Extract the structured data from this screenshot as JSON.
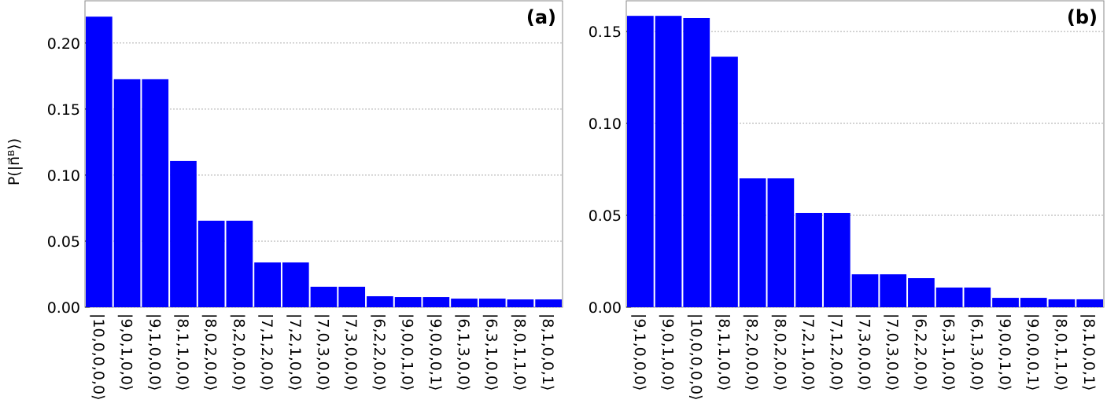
{
  "chart_data": [
    {
      "type": "bar",
      "title": "(a)",
      "ylabel": "P(|n⃗ᴮ⟩)",
      "color": "#0000ff",
      "grid": true,
      "categories": [
        "|10,0,0,0,0⟩",
        "|9,0,1,0,0⟩",
        "|9,1,0,0,0⟩",
        "|8,1,1,0,0⟩",
        "|8,0,2,0,0⟩",
        "|8,2,0,0,0⟩",
        "|7,1,2,0,0⟩",
        "|7,2,1,0,0⟩",
        "|7,0,3,0,0⟩",
        "|7,3,0,0,0⟩",
        "|6,2,2,0,0⟩",
        "|9,0,0,1,0⟩",
        "|9,0,0,0,1⟩",
        "|6,1,3,0,0⟩",
        "|6,3,1,0,0⟩",
        "|8,0,1,1,0⟩",
        "|8,1,0,0,1⟩"
      ],
      "values": [
        0.22,
        0.1726,
        0.1726,
        0.1107,
        0.0655,
        0.0655,
        0.0339,
        0.0339,
        0.0155,
        0.0155,
        0.0083,
        0.0077,
        0.0077,
        0.0065,
        0.0065,
        0.0059,
        0.0059
      ],
      "ylim": [
        0,
        0.232
      ],
      "yticks": [
        {
          "value": 0,
          "label": "0.00"
        },
        {
          "value": 0.05,
          "label": "0.05"
        },
        {
          "value": 0.1,
          "label": "0.10"
        },
        {
          "value": 0.15,
          "label": "0.15"
        },
        {
          "value": 0.2,
          "label": "0.20"
        }
      ]
    },
    {
      "type": "bar",
      "title": "(b)",
      "color": "#0000ff",
      "grid": true,
      "categories": [
        "|9,1,0,0,0⟩",
        "|9,0,1,0,0⟩",
        "|10,0,0,0,0⟩",
        "|8,1,1,0,0⟩",
        "|8,2,0,0,0⟩",
        "|8,0,2,0,0⟩",
        "|7,2,1,0,0⟩",
        "|7,1,2,0,0⟩",
        "|7,3,0,0,0⟩",
        "|7,0,3,0,0⟩",
        "|6,2,2,0,0⟩",
        "|6,3,1,0,0⟩",
        "|6,1,3,0,0⟩",
        "|9,0,0,1,0⟩",
        "|9,0,0,0,1⟩",
        "|8,0,1,1,0⟩",
        "|8,1,0,0,1⟩"
      ],
      "values": [
        0.1585,
        0.1585,
        0.1573,
        0.1363,
        0.0701,
        0.0701,
        0.0513,
        0.0513,
        0.0179,
        0.0179,
        0.0158,
        0.0107,
        0.0107,
        0.0051,
        0.0051,
        0.0043,
        0.0043
      ],
      "ylim": [
        0,
        0.1667
      ],
      "yticks": [
        {
          "value": 0,
          "label": "0.00"
        },
        {
          "value": 0.05,
          "label": "0.05"
        },
        {
          "value": 0.1,
          "label": "0.10"
        },
        {
          "value": 0.15,
          "label": "0.15"
        }
      ]
    }
  ]
}
